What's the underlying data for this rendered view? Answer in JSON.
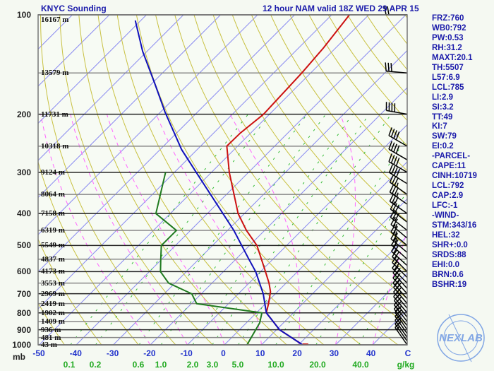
{
  "header": {
    "station": "KNYC Sounding",
    "model": "12 hour NAM valid 18Z WED 29 APR 15"
  },
  "stats": [
    "FRZ:760",
    "WB0:792",
    "PW:0.53",
    "RH:31.2",
    "MAXT:20.1",
    "TH:5507",
    "L57:6.9",
    "LCL:785",
    "LI:2.9",
    "SI:3.2",
    "TT:49",
    "KI:7",
    "SW:79",
    "EI:0.2",
    "-PARCEL-",
    "CAPE:11",
    "CINH:10719",
    "LCL:792",
    "CAP:2.9",
    "LFC:-1",
    "-WIND-",
    "STM:343/16",
    "HEL:32",
    "SHR+:0.0",
    "SRDS:88",
    "EHI:0.0",
    "BRN:0.6",
    "BSHR:19"
  ],
  "logo": {
    "text": "NEXLAB",
    "ring_top": "Next Generation Weather Lab",
    "ring_bottom": "College of DuPage"
  },
  "colors": {
    "temperature": "#cc1111",
    "dewpoint": "#1f7a1f",
    "parcel": "#1111bb",
    "isotherm": "#8c8cf0",
    "dry_adiabat": "#c8c040",
    "moist_adiabat": "#ff66ff",
    "mixing_ratio": "#33bb33",
    "text": "#1a1aaa"
  },
  "chart_data": {
    "type": "line",
    "title": "KNYC Sounding",
    "subtitle": "12 hour NAM valid 18Z WED 29 APR 15",
    "xlabel": "C",
    "ylabel": "mb",
    "x_scale": "skewed temperature (°C)",
    "y_scale": "log pressure (mb)",
    "xlim": [
      -50,
      50
    ],
    "ylim": [
      1000,
      100
    ],
    "temperature_ticks": [
      "-50",
      "-40",
      "-30",
      "-20",
      "-10",
      "0",
      "10",
      "20",
      "30",
      "40",
      "C"
    ],
    "mixing_ratio_label_unit": "g/kg",
    "mixing_ratio_ticks": [
      "0.1",
      "0.2",
      "0.6",
      "1.0",
      "2.0",
      "3.0",
      "5.0",
      "10.0",
      "20.0",
      "40.0"
    ],
    "levels": [
      {
        "p": 100,
        "label": "100",
        "height": "16167 m"
      },
      {
        "p": 150,
        "label": "",
        "height": "13579 m"
      },
      {
        "p": 200,
        "label": "200",
        "height": "11731 m"
      },
      {
        "p": 250,
        "label": "",
        "height": "10318 m"
      },
      {
        "p": 300,
        "label": "300",
        "height": "9124 m"
      },
      {
        "p": 350,
        "label": "",
        "height": "8064 m"
      },
      {
        "p": 400,
        "label": "400",
        "height": "7158 m"
      },
      {
        "p": 450,
        "label": "",
        "height": "6319 m"
      },
      {
        "p": 500,
        "label": "500",
        "height": "5549 m"
      },
      {
        "p": 550,
        "label": "",
        "height": "4837 m"
      },
      {
        "p": 600,
        "label": "600",
        "height": "4173 m"
      },
      {
        "p": 650,
        "label": "",
        "height": "3553 m"
      },
      {
        "p": 700,
        "label": "700",
        "height": "2969 m"
      },
      {
        "p": 750,
        "label": "",
        "height": "2419 m"
      },
      {
        "p": 800,
        "label": "800",
        "height": "1902 m"
      },
      {
        "p": 850,
        "label": "",
        "height": "1409 m"
      },
      {
        "p": 900,
        "label": "900",
        "height": "936 m"
      },
      {
        "p": 950,
        "label": "",
        "height": "481 m"
      },
      {
        "p": 1000,
        "label": "1000",
        "height": "43 m"
      }
    ],
    "series": [
      {
        "id": "temperature",
        "points": [
          [
            1000,
            21.1
          ],
          [
            900,
            10.8
          ],
          [
            800,
            2.7
          ],
          [
            750,
            0.8
          ],
          [
            690,
            -1.9
          ],
          [
            650,
            -4.6
          ],
          [
            590,
            -9.5
          ],
          [
            500,
            -18.0
          ],
          [
            450,
            -24.9
          ],
          [
            400,
            -31.7
          ],
          [
            300,
            -45.2
          ],
          [
            250,
            -52.9
          ],
          [
            228,
            -52.8
          ],
          [
            200,
            -51.6
          ],
          [
            150,
            -52.4
          ],
          [
            126,
            -53.3
          ],
          [
            100,
            -55.2
          ]
        ]
      },
      {
        "id": "dewpoint",
        "points": [
          [
            1000,
            6.1
          ],
          [
            858,
            3.6
          ],
          [
            800,
            1.5
          ],
          [
            750,
            -18.6
          ],
          [
            700,
            -22.6
          ],
          [
            650,
            -31.7
          ],
          [
            600,
            -37.0
          ],
          [
            551,
            -40.2
          ],
          [
            500,
            -43.8
          ],
          [
            450,
            -43.8
          ],
          [
            400,
            -53.9
          ],
          [
            300,
            -62.4
          ]
        ]
      },
      {
        "id": "parcel",
        "points": [
          [
            1000,
            21.1
          ],
          [
            900,
            10.8
          ],
          [
            800,
            2.7
          ],
          [
            700,
            -3.3
          ],
          [
            600,
            -11.3
          ],
          [
            550,
            -16.5
          ],
          [
            450,
            -28.3
          ],
          [
            302,
            -53.7
          ],
          [
            256,
            -64.2
          ],
          [
            197,
            -78.8
          ],
          [
            161,
            -89.4
          ],
          [
            129,
            -101.2
          ],
          [
            104,
            -111.5
          ]
        ]
      }
    ],
    "winds_kt": [
      [
        100,
        270,
        20
      ],
      [
        150,
        275,
        30
      ],
      [
        200,
        280,
        40
      ],
      [
        250,
        300,
        40
      ],
      [
        275,
        300,
        40
      ],
      [
        300,
        300,
        40
      ],
      [
        325,
        302,
        40
      ],
      [
        350,
        305,
        35
      ],
      [
        375,
        305,
        35
      ],
      [
        400,
        305,
        30
      ],
      [
        425,
        308,
        30
      ],
      [
        450,
        308,
        30
      ],
      [
        475,
        310,
        25
      ],
      [
        500,
        310,
        25
      ],
      [
        525,
        310,
        25
      ],
      [
        550,
        312,
        20
      ],
      [
        575,
        312,
        20
      ],
      [
        600,
        315,
        20
      ],
      [
        625,
        315,
        20
      ],
      [
        650,
        315,
        20
      ],
      [
        675,
        318,
        20
      ],
      [
        700,
        318,
        20
      ],
      [
        725,
        318,
        20
      ],
      [
        750,
        320,
        20
      ],
      [
        775,
        320,
        20
      ],
      [
        800,
        320,
        20
      ],
      [
        825,
        322,
        20
      ],
      [
        850,
        322,
        20
      ],
      [
        875,
        322,
        15
      ],
      [
        900,
        325,
        15
      ],
      [
        925,
        325,
        15
      ],
      [
        950,
        325,
        15
      ],
      [
        975,
        325,
        15
      ],
      [
        1000,
        325,
        15
      ]
    ],
    "grid": true
  }
}
